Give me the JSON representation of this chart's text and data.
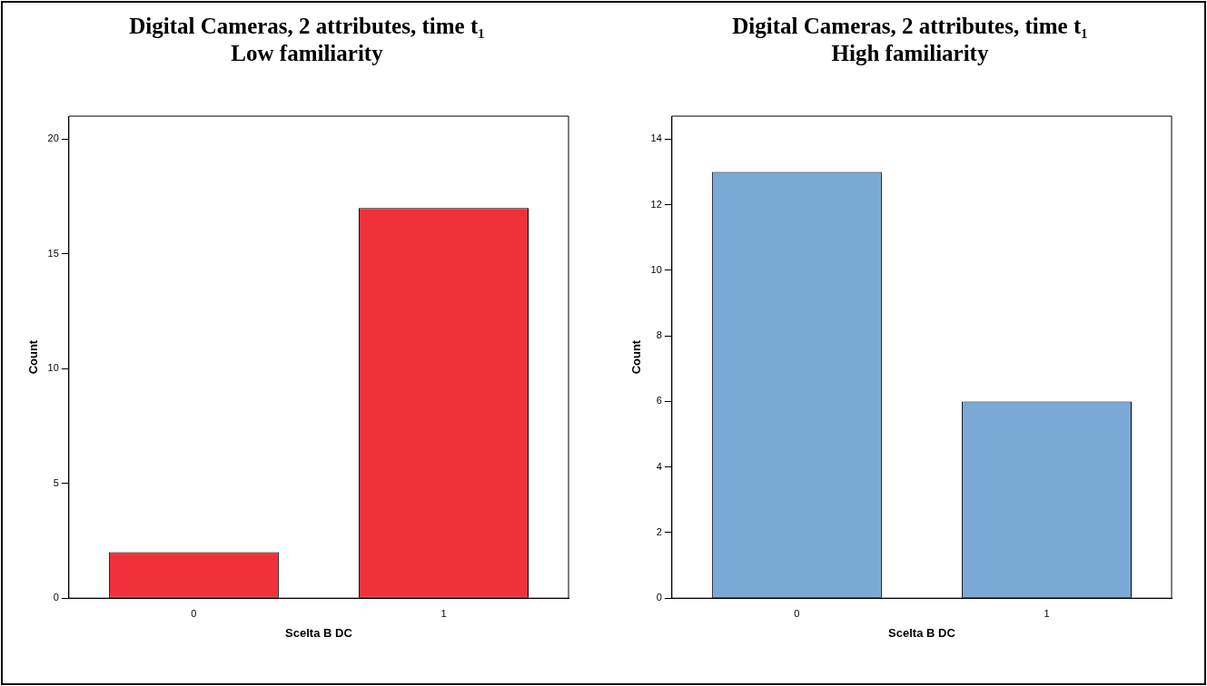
{
  "chart_data": [
    {
      "type": "bar",
      "title": "Digital Cameras, 2 attributes, time t₁",
      "subtitle": "Low familiarity",
      "xlabel": "Scelta B DC",
      "ylabel": "Count",
      "categories": [
        "0",
        "1"
      ],
      "values": [
        2,
        17
      ],
      "color": "#f0313a",
      "ylim": [
        0,
        21
      ],
      "yticks": [
        0,
        5,
        10,
        15,
        20
      ],
      "grid": false
    },
    {
      "type": "bar",
      "title": "Digital Cameras, 2 attributes, time t₁",
      "subtitle": "High familiarity",
      "xlabel": "Scelta B DC",
      "ylabel": "Count",
      "categories": [
        "0",
        "1"
      ],
      "values": [
        13,
        6
      ],
      "color": "#7ba9d5",
      "ylim": [
        0,
        14.7
      ],
      "yticks": [
        0,
        2,
        4,
        6,
        8,
        10,
        12,
        14
      ],
      "grid": false
    }
  ]
}
